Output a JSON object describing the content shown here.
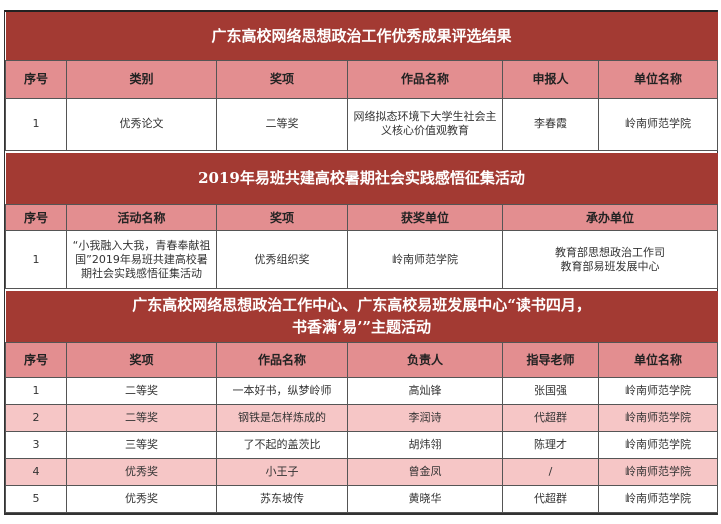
{
  "colors": {
    "title_bg": "#A33A33",
    "header_bg": "#E38E90",
    "alt_row_bg": "#F6C6C6"
  },
  "section1": {
    "title": "广东高校网络思想政治工作优秀成果评选结果",
    "headers": [
      "序号",
      "类别",
      "奖项",
      "作品名称",
      "申报人",
      "单位名称"
    ],
    "rows": [
      [
        "1",
        "优秀论文",
        "二等奖",
        "网络拟态环境下大学生社会主义核心价值观教育",
        "李春霞",
        "岭南师范学院"
      ]
    ]
  },
  "section2": {
    "title": "2019年易班共建高校暑期社会实践感悟征集活动",
    "headers": [
      "序号",
      "活动名称",
      "奖项",
      "获奖单位",
      "承办单位"
    ],
    "rows": [
      [
        "1",
        "“小我融入大我，青春奉献祖国”2019年易班共建高校暑期社会实践感悟征集活动",
        "优秀组织奖",
        "岭南师范学院",
        "教育部思想政治工作司\n教育部易班发展中心"
      ]
    ]
  },
  "section3": {
    "title_line1": "广东高校网络思想政治工作中心、广东高校易班发展中心“读书四月，",
    "title_line2": "书香满‘易’”主题活动",
    "headers": [
      "序号",
      "奖项",
      "作品名称",
      "负责人",
      "指导老师",
      "单位名称"
    ],
    "rows": [
      [
        "1",
        "二等奖",
        "一本好书，纵梦岭师",
        "高灿锋",
        "张国强",
        "岭南师范学院"
      ],
      [
        "2",
        "二等奖",
        "钢铁是怎样炼成的",
        "李润诗",
        "代超群",
        "岭南师范学院"
      ],
      [
        "3",
        "三等奖",
        "了不起的盖茨比",
        "胡炜翎",
        "陈理才",
        "岭南师范学院"
      ],
      [
        "4",
        "优秀奖",
        "小王子",
        "曾金凤",
        "/",
        "岭南师范学院"
      ],
      [
        "5",
        "优秀奖",
        "苏东坡传",
        "黄晓华",
        "代超群",
        "岭南师范学院"
      ]
    ]
  }
}
